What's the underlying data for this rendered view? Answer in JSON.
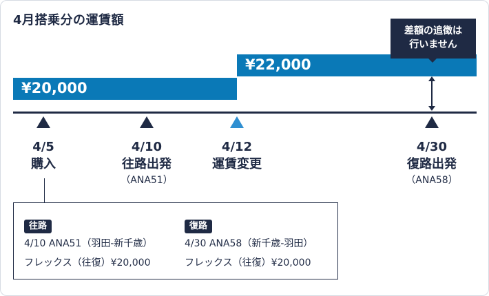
{
  "title": "4月搭乗分の運賃額",
  "fares": {
    "original": "¥20,000",
    "changed": "¥22,000"
  },
  "callout": {
    "line1": "差額の追徴は",
    "line2": "行いません"
  },
  "events": [
    {
      "date": "4/5",
      "name": "購入",
      "flight": ""
    },
    {
      "date": "4/10",
      "name": "往路出発",
      "flight": "（ANA51）"
    },
    {
      "date": "4/12",
      "name": "運賃変更",
      "flight": ""
    },
    {
      "date": "4/30",
      "name": "復路出発",
      "flight": "（ANA58）"
    }
  ],
  "itinerary": {
    "outbound": {
      "badge": "往路",
      "flight": "4/10 ANA51（羽田-新千歳）",
      "fare": "フレックス（往復）¥20,000"
    },
    "return": {
      "badge": "復路",
      "flight": "4/30 ANA58（新千歳-羽田）",
      "fare": "フレックス（往復）¥20,000"
    }
  },
  "colors": {
    "navy": "#1f2a44",
    "fare_bar": "#0a79b7",
    "change_marker": "#2f8fd1"
  }
}
